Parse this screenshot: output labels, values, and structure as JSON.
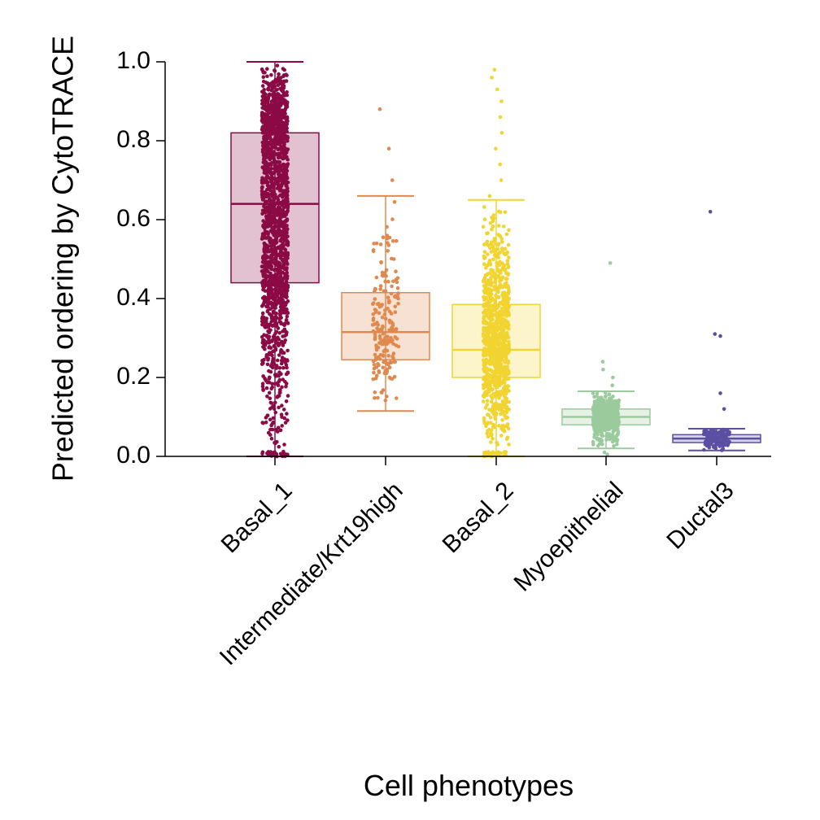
{
  "chart_data": {
    "type": "box",
    "xlabel": "Cell phenotypes",
    "ylabel": "Predicted ordering by CytoTRACE",
    "ylim": [
      0,
      1
    ],
    "yticks": [
      "0.0",
      "0.2",
      "0.4",
      "0.6",
      "0.8",
      "1.0"
    ],
    "grid": false,
    "legend": "none",
    "categories": [
      "Basal_1",
      "Intermediate/Krt19high",
      "Basal_2",
      "Myoepithelial",
      "Ductal3"
    ],
    "colors": [
      "#8B0A45",
      "#E0894F",
      "#F2D430",
      "#9BCB9C",
      "#5B4FA3"
    ],
    "boxes": [
      {
        "category": "Basal_1",
        "whisker_low": 0.0,
        "q1": 0.44,
        "median": 0.64,
        "q3": 0.82,
        "whisker_high": 1.0,
        "approx_n": 1800
      },
      {
        "category": "Intermediate/Krt19high",
        "whisker_low": 0.115,
        "q1": 0.245,
        "median": 0.315,
        "q3": 0.415,
        "whisker_high": 0.66,
        "approx_n": 200,
        "outliers": [
          0.7,
          0.78,
          0.88
        ]
      },
      {
        "category": "Basal_2",
        "whisker_low": 0.0,
        "q1": 0.2,
        "median": 0.27,
        "q3": 0.385,
        "whisker_high": 0.65,
        "approx_n": 900,
        "outliers": [
          0.66,
          0.7,
          0.74,
          0.78,
          0.82,
          0.86,
          0.9,
          0.93,
          0.96,
          0.98
        ]
      },
      {
        "category": "Myoepithelial",
        "whisker_low": 0.02,
        "q1": 0.08,
        "median": 0.1,
        "q3": 0.12,
        "whisker_high": 0.165,
        "approx_n": 500,
        "outliers": [
          0.18,
          0.2,
          0.22,
          0.24,
          0.49,
          0.005,
          0.01
        ]
      },
      {
        "category": "Ductal3",
        "whisker_low": 0.015,
        "q1": 0.035,
        "median": 0.045,
        "q3": 0.055,
        "whisker_high": 0.07,
        "approx_n": 150,
        "outliers": [
          0.12,
          0.16,
          0.305,
          0.31,
          0.62
        ]
      }
    ]
  }
}
